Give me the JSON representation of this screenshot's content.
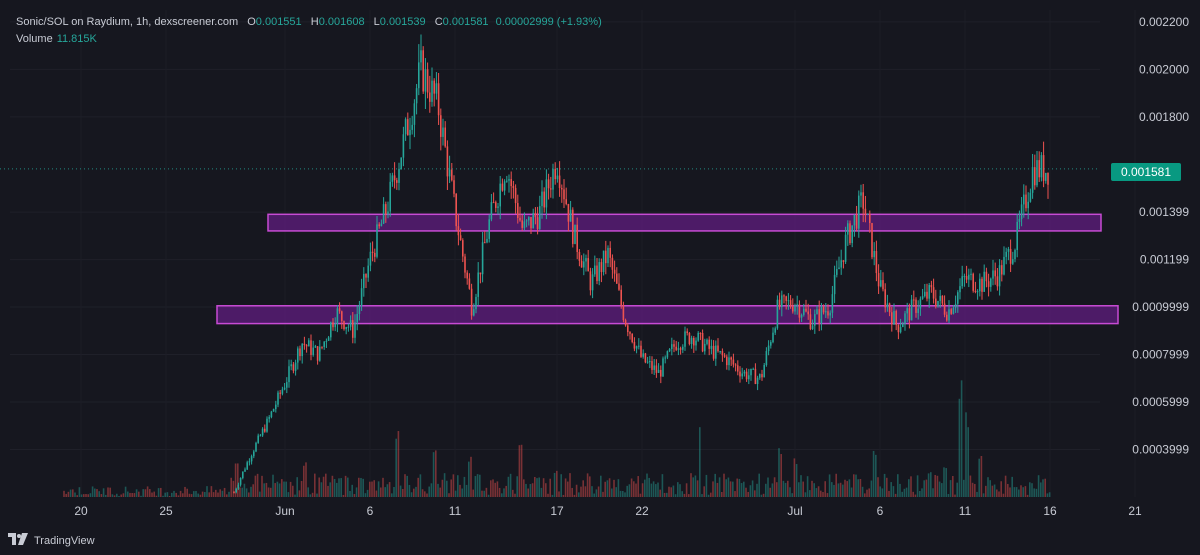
{
  "header": {
    "title": "Sonic/SOL on Raydium, 1h, dexscreener.com",
    "o_label": "O",
    "o_value": "0.001551",
    "h_label": "H",
    "h_value": "0.001608",
    "l_label": "L",
    "l_value": "0.001539",
    "c_label": "C",
    "c_value": "0.001581",
    "change": "0.00002999 (+1.93%)",
    "volume_label": "Volume",
    "volume_value": "11.815K"
  },
  "last_price_label": "0.001581",
  "branding": "TradingView",
  "colors": {
    "background": "#16171f",
    "up": "#26a69a",
    "down": "#ef5350",
    "zone_fill": "#7b1fa2",
    "zone_border": "#c74bd4",
    "axis_text": "#c8cbd4",
    "last_badge": "#089981"
  },
  "chart_data": {
    "type": "candlestick",
    "y_scale": "linear",
    "ylim": [
      0.0002,
      0.00225
    ],
    "y_ticks": [
      "0.002200",
      "0.002000",
      "0.001800",
      "0.001399",
      "0.001199",
      "0.0009999",
      "0.0007999",
      "0.0005999",
      "0.0003999"
    ],
    "y_tick_values": [
      0.0022,
      0.002,
      0.0018,
      0.001399,
      0.001199,
      0.0009999,
      0.0007999,
      0.0005999,
      0.0003999
    ],
    "x_ticks": [
      "20",
      "25",
      "Jun",
      "6",
      "11",
      "17",
      "22",
      "Jul",
      "6",
      "11",
      "16",
      "21"
    ],
    "x_tick_dates": [
      "2024-05-20",
      "2024-05-25",
      "2024-06-01",
      "2024-06-06",
      "2024-06-11",
      "2024-06-17",
      "2024-06-22",
      "2024-07-01",
      "2024-07-06",
      "2024-07-11",
      "2024-07-16",
      "2024-07-21"
    ],
    "last_price": 0.001581,
    "price_path": [
      [
        "2024-05-29",
        0.00022
      ],
      [
        "2024-05-30",
        0.00038
      ],
      [
        "2024-05-31",
        0.00052
      ],
      [
        "2024-06-01",
        0.00068
      ],
      [
        "2024-06-02",
        0.00085
      ],
      [
        "2024-06-03",
        0.0008
      ],
      [
        "2024-06-04",
        0.00098
      ],
      [
        "2024-06-05",
        0.0009
      ],
      [
        "2024-06-06",
        0.0012
      ],
      [
        "2024-06-07",
        0.00142
      ],
      [
        "2024-06-08",
        0.0017
      ],
      [
        "2024-06-09",
        0.002
      ],
      [
        "2024-06-10",
        0.00185
      ],
      [
        "2024-06-11",
        0.0014
      ],
      [
        "2024-06-12",
        0.001
      ],
      [
        "2024-06-13",
        0.00135
      ],
      [
        "2024-06-14",
        0.0016
      ],
      [
        "2024-06-15",
        0.00132
      ],
      [
        "2024-06-16",
        0.0014
      ],
      [
        "2024-06-17",
        0.00162
      ],
      [
        "2024-06-18",
        0.0013
      ],
      [
        "2024-06-19",
        0.0011
      ],
      [
        "2024-06-20",
        0.00122
      ],
      [
        "2024-06-21",
        0.00095
      ],
      [
        "2024-06-22",
        0.00078
      ],
      [
        "2024-06-23",
        0.00072
      ],
      [
        "2024-06-24",
        0.00085
      ],
      [
        "2024-06-25",
        0.00088
      ],
      [
        "2024-06-26",
        0.00082
      ],
      [
        "2024-06-27",
        0.00078
      ],
      [
        "2024-06-28",
        0.00072
      ],
      [
        "2024-06-29",
        0.0007
      ],
      [
        "2024-06-30",
        0.001
      ],
      [
        "2024-07-01",
        0.00102
      ],
      [
        "2024-07-02",
        0.00094
      ],
      [
        "2024-07-03",
        0.001
      ],
      [
        "2024-07-04",
        0.00128
      ],
      [
        "2024-07-05",
        0.00145
      ],
      [
        "2024-07-06",
        0.00108
      ],
      [
        "2024-07-07",
        0.00092
      ],
      [
        "2024-07-08",
        0.001
      ],
      [
        "2024-07-09",
        0.00106
      ],
      [
        "2024-07-10",
        0.00098
      ],
      [
        "2024-07-11",
        0.00112
      ],
      [
        "2024-07-12",
        0.0011
      ],
      [
        "2024-07-13",
        0.00114
      ],
      [
        "2024-07-14",
        0.00128
      ],
      [
        "2024-07-15",
        0.00158
      ],
      [
        "2024-07-16",
        0.00158
      ]
    ],
    "zones": [
      {
        "from": "2024-05-31",
        "to": "2024-07-19",
        "low": 0.00132,
        "high": 0.00139
      },
      {
        "from": "2024-05-28",
        "to": "2024-07-20",
        "low": 0.00093,
        "high": 0.001005
      }
    ]
  }
}
